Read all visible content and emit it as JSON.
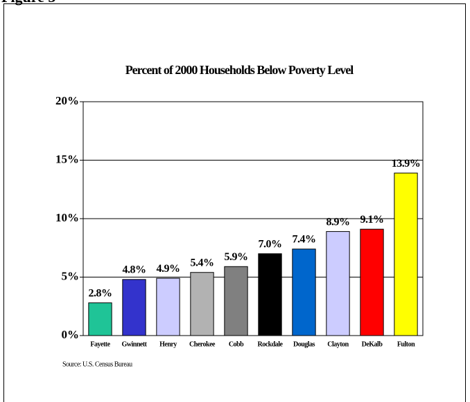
{
  "figure_label": "Figure 3",
  "chart_data": {
    "type": "bar",
    "title": "Percent of 2000 Households Below Poverty Level",
    "categories": [
      "Fayette",
      "Gwinnett",
      "Henry",
      "Cherokee",
      "Cobb",
      "Rockdale",
      "Douglas",
      "Clayton",
      "DeKalb",
      "Fulton"
    ],
    "values": [
      2.8,
      4.8,
      4.9,
      5.4,
      5.9,
      7.0,
      7.4,
      8.9,
      9.1,
      13.9
    ],
    "value_labels": [
      "2.8%",
      "4.8%",
      "4.9%",
      "5.4%",
      "5.9%",
      "7.0%",
      "7.4%",
      "8.9%",
      "9.1%",
      "13.9%"
    ],
    "colors": [
      "#1fc497",
      "#3333cc",
      "#ccccff",
      "#b2b2b2",
      "#808080",
      "#000000",
      "#0066cc",
      "#ccccff",
      "#ff0000",
      "#ffff00"
    ],
    "ylim": [
      0,
      20
    ],
    "yticks": [
      {
        "value": 0,
        "label": "0%"
      },
      {
        "value": 5,
        "label": "5%"
      },
      {
        "value": 10,
        "label": "10%"
      },
      {
        "value": 15,
        "label": "15%"
      },
      {
        "value": 20,
        "label": "20%"
      }
    ],
    "grid": true,
    "source": "Source: U.S. Census Bureau"
  }
}
